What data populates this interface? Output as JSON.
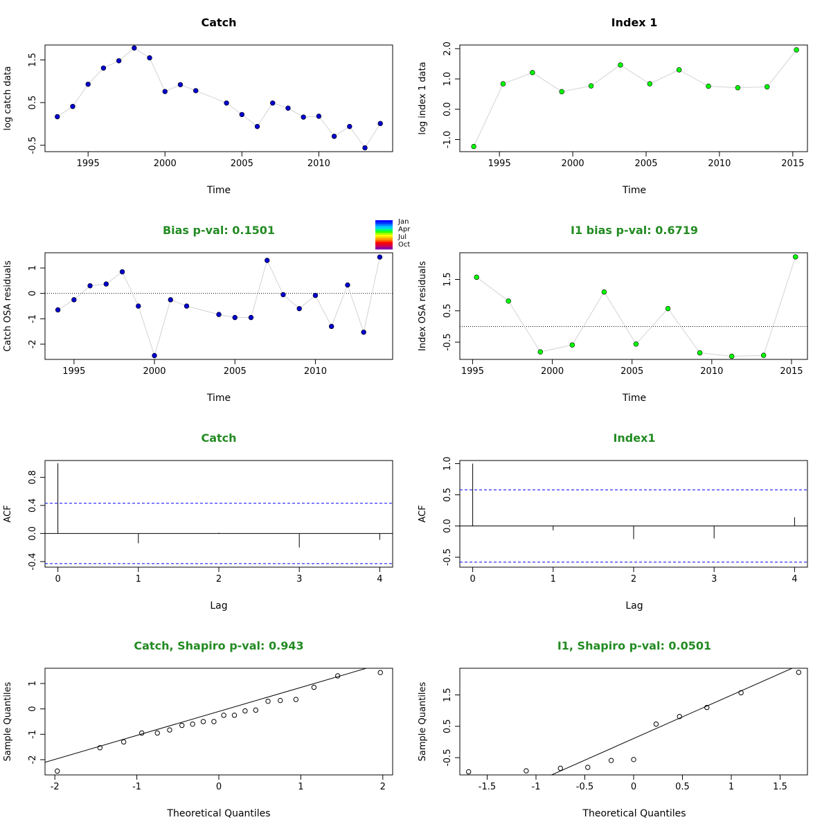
{
  "colors": {
    "catch_points": "#0000CD",
    "index_points": "#00FF00",
    "title_green": "#228B22",
    "ci_blue": "#0000FF",
    "connector": "#D3D3D3"
  },
  "chart_data": [
    {
      "id": "catch_data",
      "type": "scatter",
      "title": "Catch",
      "title_color": "black",
      "xlabel": "Time",
      "ylabel": "log catch data",
      "xlim": [
        1992.2,
        2014.8
      ],
      "ylim": [
        -0.65,
        1.85
      ],
      "xticks": [
        1995,
        2000,
        2005,
        2010
      ],
      "yticks": [
        -0.5,
        0.5,
        1.5
      ],
      "connect": true,
      "point_style": "filled",
      "point_color": "#0000CD",
      "x": [
        1993,
        1994,
        1995,
        1996,
        1997,
        1998,
        1999,
        2000,
        2001,
        2002,
        2004,
        2005,
        2006,
        2007,
        2008,
        2009,
        2010,
        2011,
        2012,
        2013,
        2014
      ],
      "y": [
        0.17,
        0.41,
        0.93,
        1.31,
        1.48,
        1.78,
        1.55,
        0.76,
        0.92,
        0.78,
        0.49,
        0.22,
        -0.06,
        0.49,
        0.37,
        0.16,
        0.18,
        -0.29,
        -0.06,
        -0.56,
        0.01
      ]
    },
    {
      "id": "index_data",
      "type": "scatter",
      "title": "Index 1",
      "title_color": "black",
      "xlabel": "Time",
      "ylabel": "log index 1 data",
      "xlim": [
        1992.3,
        2016.0
      ],
      "ylim": [
        -1.4,
        2.12
      ],
      "xticks": [
        1995,
        2000,
        2005,
        2010,
        2015
      ],
      "yticks": [
        -1.0,
        0.0,
        1.0,
        2.0
      ],
      "yticklabels": [
        "-1.0",
        "0.0",
        "1.0",
        "2.0"
      ],
      "connect": true,
      "point_style": "filled",
      "point_color": "#00FF00",
      "x": [
        1993.25,
        1995.25,
        1997.25,
        1999.25,
        2001.25,
        2003.25,
        2005.25,
        2007.25,
        2009.25,
        2011.25,
        2013.25,
        2015.25
      ],
      "y": [
        -1.23,
        0.84,
        1.21,
        0.58,
        0.77,
        1.46,
        0.84,
        1.3,
        0.76,
        0.71,
        0.74,
        1.96
      ]
    },
    {
      "id": "catch_resid",
      "type": "scatter",
      "title": "Bias p-val: 0.1501",
      "title_color": "green",
      "xlabel": "Time",
      "ylabel": "Catch OSA residuals",
      "xlim": [
        1993.2,
        2014.8
      ],
      "ylim": [
        -2.6,
        1.6
      ],
      "xticks": [
        1995,
        2000,
        2005,
        2010
      ],
      "yticks": [
        -2,
        -1,
        0,
        1
      ],
      "hline": 0,
      "connect": true,
      "point_style": "filled",
      "point_color": "#0000CD",
      "x": [
        1994,
        1995,
        1996,
        1997,
        1998,
        1999,
        2000,
        2001,
        2002,
        2004,
        2005,
        2006,
        2007,
        2008,
        2009,
        2010,
        2011,
        2012,
        2013,
        2014
      ],
      "y": [
        -0.65,
        -0.25,
        0.3,
        0.37,
        0.85,
        -0.5,
        -2.45,
        -0.25,
        -0.5,
        -0.83,
        -0.95,
        -0.95,
        1.3,
        -0.05,
        -0.6,
        -0.08,
        -1.3,
        0.33,
        -1.53,
        1.43
      ]
    },
    {
      "id": "index_resid",
      "type": "scatter",
      "title": "I1 bias p-val: 0.6719",
      "title_color": "green",
      "xlabel": "Time",
      "ylabel": "Index OSA residuals",
      "xlim": [
        1994.2,
        2016.0
      ],
      "ylim": [
        -1.05,
        2.35
      ],
      "xticks": [
        1995,
        2000,
        2005,
        2010,
        2015
      ],
      "yticks": [
        -0.5,
        0.5,
        1.5
      ],
      "hline": 0,
      "connect": true,
      "point_style": "filled",
      "point_color": "#00FF00",
      "x": [
        1995.25,
        1997.25,
        1999.25,
        2001.25,
        2003.25,
        2005.25,
        2007.25,
        2009.25,
        2011.25,
        2013.25,
        2015.25
      ],
      "y": [
        1.57,
        0.81,
        -0.81,
        -0.59,
        1.1,
        -0.56,
        0.57,
        -0.84,
        -0.95,
        -0.92,
        2.22
      ]
    },
    {
      "id": "catch_acf",
      "type": "bar",
      "title": "Catch",
      "title_color": "green",
      "xlabel": "Lag",
      "ylabel": "ACF",
      "xlim": [
        -0.16,
        4.16
      ],
      "ylim": [
        -0.48,
        1.04
      ],
      "xticks": [
        0,
        1,
        2,
        3,
        4
      ],
      "yticks": [
        -0.4,
        0.0,
        0.4,
        0.8
      ],
      "yticklabels": [
        "-0.4",
        "0.0",
        "0.4",
        "0.8"
      ],
      "hline": 0,
      "ci": 0.43,
      "lags": [
        0,
        1,
        2,
        3,
        4
      ],
      "values": [
        1.0,
        -0.14,
        0.01,
        -0.2,
        -0.09
      ]
    },
    {
      "id": "index_acf",
      "type": "bar",
      "title": "Index1",
      "title_color": "green",
      "xlabel": "Lag",
      "ylabel": "ACF",
      "xlim": [
        -0.16,
        4.16
      ],
      "ylim": [
        -0.66,
        1.05
      ],
      "xticks": [
        0,
        1,
        2,
        3,
        4
      ],
      "yticks": [
        -0.5,
        0.0,
        0.5,
        1.0
      ],
      "yticklabels": [
        "-0.5",
        "0.0",
        "0.5",
        "1.0"
      ],
      "hline": 0,
      "ci": 0.58,
      "lags": [
        0,
        1,
        2,
        3,
        4
      ],
      "values": [
        1.0,
        -0.07,
        -0.21,
        -0.2,
        0.14
      ]
    },
    {
      "id": "catch_qq",
      "type": "scatter",
      "title": "Catch, Shapiro p-val: 0.943",
      "title_color": "green",
      "xlabel": "Theoretical Quantiles",
      "ylabel": "Sample Quantiles",
      "xlim": [
        -2.12,
        2.12
      ],
      "ylim": [
        -2.6,
        1.6
      ],
      "xticks": [
        -2,
        -1,
        0,
        1,
        2
      ],
      "yticks": [
        -2,
        -1,
        0,
        1
      ],
      "point_style": "open",
      "refline": {
        "slope": 0.945,
        "intercept": -0.1
      },
      "x": [
        -1.97,
        -1.45,
        -1.16,
        -0.94,
        -0.75,
        -0.6,
        -0.45,
        -0.32,
        -0.19,
        -0.06,
        0.06,
        0.19,
        0.32,
        0.45,
        0.6,
        0.75,
        0.94,
        1.16,
        1.45,
        1.97
      ],
      "y": [
        -2.45,
        -1.53,
        -1.3,
        -0.95,
        -0.95,
        -0.83,
        -0.65,
        -0.6,
        -0.5,
        -0.5,
        -0.25,
        -0.25,
        -0.08,
        -0.05,
        0.3,
        0.33,
        0.37,
        0.85,
        1.3,
        1.43
      ]
    },
    {
      "id": "index_qq",
      "type": "scatter",
      "title": "I1, Shapiro p-val: 0.0501",
      "title_color": "green",
      "xlabel": "Theoretical Quantiles",
      "ylabel": "Sample Quantiles",
      "xlim": [
        -1.78,
        1.78
      ],
      "ylim": [
        -1.05,
        2.35
      ],
      "xticks": [
        -1.5,
        -1.0,
        -0.5,
        0.0,
        0.5,
        1.0,
        1.5
      ],
      "yticks": [
        -0.5,
        0.5,
        1.5
      ],
      "point_style": "open",
      "refline": {
        "slope": 1.38,
        "intercept": 0.11
      },
      "x": [
        -1.69,
        -1.1,
        -0.75,
        -0.47,
        -0.23,
        0.0,
        0.23,
        0.47,
        0.75,
        1.1,
        1.69
      ],
      "y": [
        -0.95,
        -0.92,
        -0.84,
        -0.81,
        -0.59,
        -0.56,
        0.57,
        0.81,
        1.1,
        1.57,
        2.22
      ]
    }
  ],
  "month_legend": {
    "labels": [
      "Jan",
      "Apr",
      "Jul",
      "Oct"
    ],
    "colors": [
      "#0000FF",
      "#0033FF",
      "#0077FF",
      "#00BBFF",
      "#00E0E0",
      "#00FF66",
      "#33FF00",
      "#AAFF00",
      "#FFFF00",
      "#FFCC00",
      "#FF9900",
      "#FF5500",
      "#FF0000",
      "#DD0033",
      "#BB0066",
      "#8800AA"
    ]
  }
}
